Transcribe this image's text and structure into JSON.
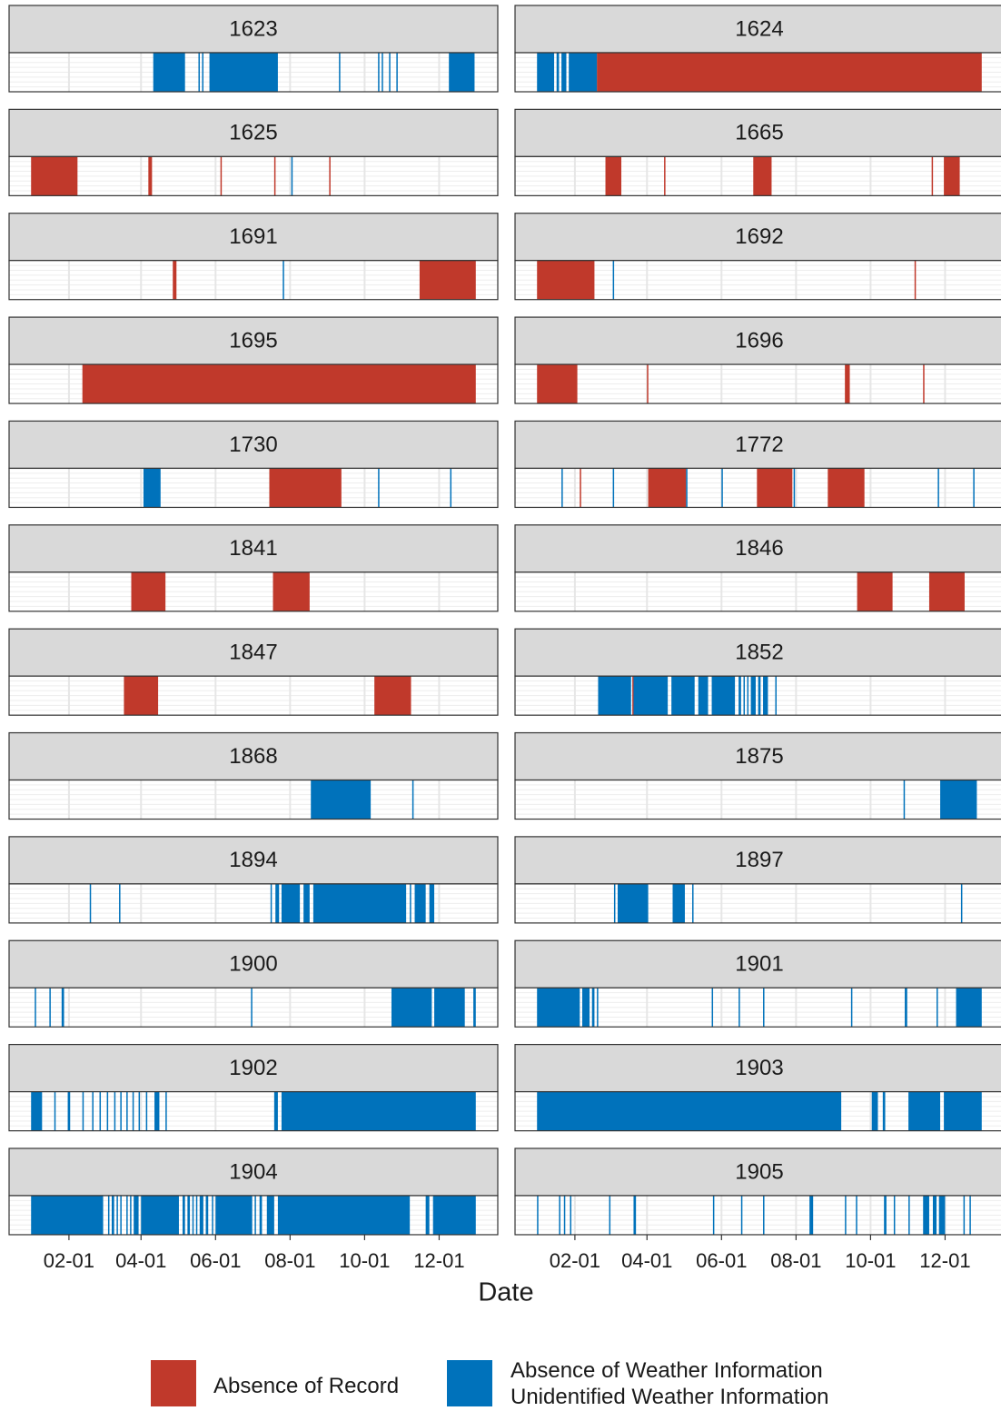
{
  "chart_data": {
    "type": "interval",
    "xlabel": "Date",
    "xlim": [
      -17,
      383
    ],
    "xticks": [
      {
        "value": 32,
        "label": "02-01"
      },
      {
        "value": 91,
        "label": "04-01"
      },
      {
        "value": 152,
        "label": "06-01"
      },
      {
        "value": 213,
        "label": "08-01"
      },
      {
        "value": 274,
        "label": "10-01"
      },
      {
        "value": 335,
        "label": "12-01"
      }
    ],
    "grid": true,
    "series": [
      {
        "name": "Absence of Record",
        "color": "#c0392b"
      },
      {
        "name": "Absence of Weather Information\nUnidentified Weather Information",
        "color": "#0072bb"
      }
    ],
    "panels": [
      {
        "title": "1623",
        "intervals": [
          [
            [
              179,
              179
            ]
          ],
          [
            [
              101,
              127
            ],
            [
              138,
              138
            ],
            [
              141,
              141
            ],
            [
              147,
              203
            ],
            [
              253,
              253
            ],
            [
              285,
              285
            ],
            [
              288,
              288
            ],
            [
              294,
              294
            ],
            [
              300,
              300
            ],
            [
              343,
              364
            ]
          ]
        ]
      },
      {
        "title": "1624",
        "intervals": [
          [
            [
              50,
              365
            ]
          ],
          [
            [
              1,
              15
            ],
            [
              17,
              19
            ],
            [
              21,
              25
            ],
            [
              27,
              50
            ]
          ]
        ]
      },
      {
        "title": "1625",
        "intervals": [
          [
            [
              1,
              39
            ],
            [
              97,
              100
            ],
            [
              156,
              156
            ],
            [
              200,
              200
            ],
            [
              245,
              245
            ]
          ],
          [
            [
              214,
              214
            ]
          ]
        ]
      },
      {
        "title": "1665",
        "intervals": [
          [
            [
              57,
              70
            ],
            [
              105,
              105
            ],
            [
              178,
              193
            ],
            [
              324,
              324
            ],
            [
              334,
              347
            ]
          ],
          []
        ]
      },
      {
        "title": "1691",
        "intervals": [
          [
            [
              117,
              120
            ],
            [
              319,
              365
            ]
          ],
          [
            [
              207,
              207
            ]
          ]
        ]
      },
      {
        "title": "1692",
        "intervals": [
          [
            [
              1,
              48
            ],
            [
              310,
              310
            ]
          ],
          [
            [
              63,
              63
            ]
          ]
        ]
      },
      {
        "title": "1695",
        "intervals": [
          [
            [
              43,
              365
            ]
          ],
          []
        ]
      },
      {
        "title": "1696",
        "intervals": [
          [
            [
              1,
              34
            ],
            [
              91,
              91
            ],
            [
              253,
              257
            ],
            [
              317,
              317
            ]
          ],
          []
        ]
      },
      {
        "title": "1730",
        "intervals": [
          [
            [
              196,
              255
            ]
          ],
          [
            [
              93,
              107
            ],
            [
              285,
              285
            ],
            [
              344,
              344
            ]
          ]
        ]
      },
      {
        "title": "1772",
        "intervals": [
          [
            [
              36,
              36
            ],
            [
              92,
              123
            ],
            [
              181,
              210
            ],
            [
              239,
              269
            ]
          ],
          [
            [
              21,
              21
            ],
            [
              63,
              63
            ],
            [
              123,
              123
            ],
            [
              152,
              152
            ],
            [
              211,
              211
            ],
            [
              329,
              329
            ],
            [
              358,
              358
            ]
          ]
        ]
      },
      {
        "title": "1841",
        "intervals": [
          [
            [
              83,
              111
            ],
            [
              199,
              229
            ]
          ],
          []
        ]
      },
      {
        "title": "1846",
        "intervals": [
          [
            [
              263,
              292
            ],
            [
              322,
              351
            ]
          ],
          []
        ]
      },
      {
        "title": "1847",
        "intervals": [
          [
            [
              77,
              105
            ],
            [
              282,
              312
            ]
          ],
          []
        ]
      },
      {
        "title": "1852",
        "intervals": [
          [
            [
              79,
              79
            ]
          ],
          [
            [
              51,
              78
            ],
            [
              80,
              108
            ],
            [
              111,
              130
            ],
            [
              133,
              141
            ],
            [
              144,
              163
            ],
            [
              166,
              168
            ],
            [
              170,
              171
            ],
            [
              173,
              174
            ],
            [
              176,
              180
            ],
            [
              182,
              184
            ],
            [
              186,
              190
            ],
            [
              196,
              197
            ]
          ]
        ]
      },
      {
        "title": "1868",
        "intervals": [
          [],
          [
            [
              230,
              279
            ],
            [
              313,
              313
            ]
          ]
        ]
      },
      {
        "title": "1875",
        "intervals": [
          [],
          [
            [
              301,
              301
            ],
            [
              331,
              361
            ]
          ]
        ]
      },
      {
        "title": "1894",
        "intervals": [
          [],
          [
            [
              49,
              49
            ],
            [
              73,
              73
            ],
            [
              197,
              198
            ],
            [
              201,
              204
            ],
            [
              206,
              221
            ],
            [
              224,
              229
            ],
            [
              232,
              308
            ],
            [
              311,
              312
            ],
            [
              315,
              324
            ],
            [
              327,
              331
            ]
          ]
        ]
      },
      {
        "title": "1897",
        "intervals": [
          [],
          [
            [
              64,
              65
            ],
            [
              67,
              92
            ],
            [
              112,
              122
            ],
            [
              128,
              128
            ],
            [
              348,
              348
            ]
          ]
        ]
      },
      {
        "title": "1900",
        "intervals": [
          [],
          [
            [
              4,
              4
            ],
            [
              16,
              16
            ],
            [
              26,
              28
            ],
            [
              181,
              181
            ],
            [
              296,
              329
            ],
            [
              331,
              356
            ],
            [
              363,
              365
            ]
          ]
        ]
      },
      {
        "title": "1901",
        "intervals": [
          [],
          [
            [
              1,
              36
            ],
            [
              38,
              44
            ],
            [
              46,
              48
            ],
            [
              50,
              51
            ],
            [
              144,
              144
            ],
            [
              166,
              166
            ],
            [
              186,
              186
            ],
            [
              258,
              258
            ],
            [
              302,
              304
            ],
            [
              328,
              328
            ],
            [
              344,
              365
            ]
          ]
        ]
      },
      {
        "title": "1902",
        "intervals": [
          [],
          [
            [
              1,
              10
            ],
            [
              20,
              20
            ],
            [
              31,
              33
            ],
            [
              43,
              43
            ],
            [
              51,
              51
            ],
            [
              57,
              57
            ],
            [
              63,
              63
            ],
            [
              69,
              69
            ],
            [
              74,
              74
            ],
            [
              79,
              79
            ],
            [
              84,
              84
            ],
            [
              89,
              89
            ],
            [
              95,
              95
            ],
            [
              102,
              106
            ],
            [
              111,
              111
            ],
            [
              200,
              203
            ],
            [
              206,
              365
            ]
          ]
        ]
      },
      {
        "title": "1903",
        "intervals": [
          [],
          [
            [
              1,
              250
            ],
            [
              275,
              280
            ],
            [
              284,
              286
            ],
            [
              305,
              331
            ],
            [
              334,
              365
            ]
          ]
        ]
      },
      {
        "title": "1904",
        "intervals": [
          [],
          [
            [
              1,
              60
            ],
            [
              64,
              65
            ],
            [
              67,
              69
            ],
            [
              71,
              72
            ],
            [
              74,
              75
            ],
            [
              79,
              80
            ],
            [
              82,
              83
            ],
            [
              85,
              89
            ],
            [
              91,
              122
            ],
            [
              125,
              127
            ],
            [
              129,
              131
            ],
            [
              133,
              134
            ],
            [
              136,
              137
            ],
            [
              139,
              142
            ],
            [
              144,
              146
            ],
            [
              149,
              150
            ],
            [
              152,
              182
            ],
            [
              184,
              185
            ],
            [
              188,
              190
            ],
            [
              194,
              200
            ],
            [
              203,
              311
            ],
            [
              324,
              327
            ],
            [
              330,
              365
            ]
          ]
        ]
      },
      {
        "title": "1905",
        "intervals": [
          [],
          [
            [
              1,
              1
            ],
            [
              19,
              19
            ],
            [
              23,
              23
            ],
            [
              28,
              28
            ],
            [
              60,
              60
            ],
            [
              80,
              82
            ],
            [
              145,
              145
            ],
            [
              168,
              168
            ],
            [
              186,
              186
            ],
            [
              224,
              227
            ],
            [
              253,
              253
            ],
            [
              262,
              262
            ],
            [
              285,
              287
            ],
            [
              293,
              293
            ],
            [
              305,
              305
            ],
            [
              317,
              322
            ],
            [
              325,
              328
            ],
            [
              330,
              335
            ],
            [
              350,
              350
            ],
            [
              355,
              355
            ]
          ]
        ]
      }
    ]
  }
}
